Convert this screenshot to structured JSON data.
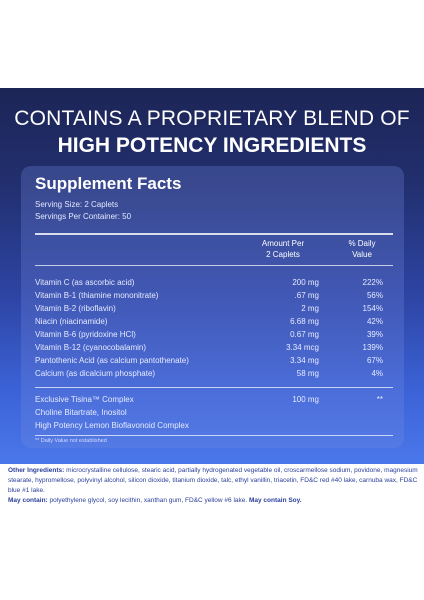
{
  "headline": {
    "line1": "CONTAINS A PROPRIETARY BLEND OF",
    "line2": "HIGH POTENCY INGREDIENTS"
  },
  "facts": {
    "title": "Supplement Facts",
    "serving_size": "Serving Size: 2 Caplets",
    "servings_per_container": "Servings Per Container: 50",
    "col_amount": [
      "Amount Per",
      "2 Caplets"
    ],
    "col_dv": [
      "% Daily",
      "Value"
    ],
    "rows": [
      {
        "name": "Vitamin C (as ascorbic acid)",
        "amount": "200 mg",
        "dv": "222%"
      },
      {
        "name": "Vitamin B-1 (thiamine mononitrate)",
        "amount": ".67 mg",
        "dv": "56%"
      },
      {
        "name": "Vitamin B-2 (riboflavin)",
        "amount": "2 mg",
        "dv": "154%"
      },
      {
        "name": "Niacin (niacinamide)",
        "amount": "6.68 mg",
        "dv": "42%"
      },
      {
        "name": "Vitamin B-6 (pyridoxine HCl)",
        "amount": "0.67 mg",
        "dv": "39%"
      },
      {
        "name": "Vitamin B-12 (cyanocobalamin)",
        "amount": "3.34 mcg",
        "dv": "139%"
      },
      {
        "name": "Pantothenic Acid (as calcium pantothenate)",
        "amount": "3.34 mg",
        "dv": "67%"
      },
      {
        "name": "Calcium (as dicalcium phosphate)",
        "amount": "58 mg",
        "dv": "4%"
      }
    ],
    "blend": [
      {
        "name": "Exclusive Tisina™ Complex",
        "amount": "100 mg",
        "dv": "**"
      },
      {
        "name": "Choline Bitartrate, Inositol",
        "amount": "",
        "dv": ""
      },
      {
        "name": "High Potency Lemon Bioflavonoid Complex",
        "amount": "",
        "dv": ""
      }
    ],
    "footnote": "** Daily Value not established"
  },
  "other": {
    "label": "Other Ingredients:",
    "text": " microcrystalline cellulose, stearic acid, partially hydrogenated vegetable oil, croscarmellose sodium, povidone, magnesium stearate, hypromellose, polyvinyl alcohol, silicon dioxide, titanium dioxide, talc, ethyl vanillin, triacetin, FD&C red #40 lake, carnuba wax, FD&C blue #1 lake.",
    "may_label": "May contain:",
    "may_text": " polyethylene glycol, soy lecithin, xanthan gum, FD&C yellow #6 lake.",
    "soy": " May contain Soy."
  }
}
